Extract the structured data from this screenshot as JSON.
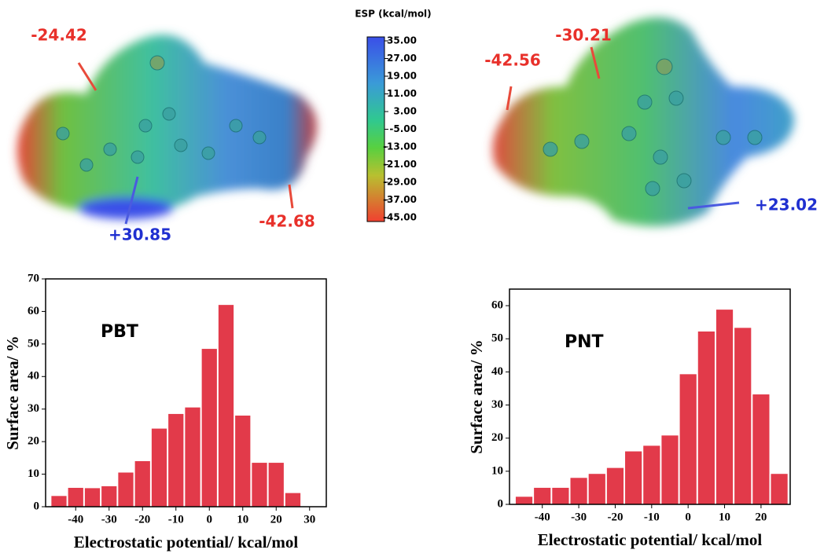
{
  "chart_data": [
    {
      "type": "histogram",
      "annotation": "PBT",
      "xlabel": "Electrostatic potential/ kcal/mol",
      "ylabel": "Surface area/ %",
      "bins": [
        -47.5,
        -42.5,
        -37.5,
        -32.5,
        -27.5,
        -22.5,
        -17.5,
        -12.5,
        -7.5,
        -2.5,
        2.5,
        7.5,
        12.5,
        17.5,
        22.5,
        27.5
      ],
      "values": [
        3.3,
        5.8,
        5.7,
        6.3,
        10.5,
        14,
        24,
        28.5,
        30.5,
        48.5,
        62,
        28,
        13.5,
        13.5,
        4.2
      ],
      "color": "#e23a4a",
      "xlim": [
        -49,
        35
      ],
      "xticks": [
        -40,
        -30,
        -20,
        -10,
        0,
        10,
        20,
        30
      ],
      "ylim": [
        0,
        70
      ],
      "yticks": [
        0,
        10,
        20,
        30,
        40,
        50,
        60,
        70
      ]
    },
    {
      "type": "histogram",
      "annotation": "PNT",
      "xlabel": "Electrostatic potential/ kcal/mol",
      "ylabel": "Surface area/ %",
      "bins": [
        -47.5,
        -42.5,
        -37.5,
        -32.5,
        -27.5,
        -22.5,
        -17.5,
        -12.5,
        -7.5,
        -2.5,
        2.5,
        7.5,
        12.5,
        17.5,
        22.5,
        27.5
      ],
      "values": [
        2.3,
        5,
        5,
        8,
        9.2,
        11,
        16,
        17.7,
        20.8,
        39.3,
        52.2,
        58.8,
        53.3,
        33.2,
        9.2
      ],
      "color": "#e23a4a",
      "xlim": [
        -49,
        28
      ],
      "xticks": [
        -40,
        -30,
        -20,
        -10,
        0,
        10,
        20
      ],
      "ylim": [
        0,
        65
      ],
      "yticks": [
        0,
        10,
        20,
        30,
        40,
        50,
        60
      ]
    }
  ],
  "esp_maps": {
    "colorbar": {
      "title": "ESP (kcal/mol)",
      "ticks": [
        {
          "value": 35,
          "label": "35.00"
        },
        {
          "value": 27,
          "label": "27.00"
        },
        {
          "value": 19,
          "label": "19.00"
        },
        {
          "value": 11,
          "label": "11.00"
        },
        {
          "value": 3,
          "label": "3.00"
        },
        {
          "value": -5,
          "label": "-5.00"
        },
        {
          "value": -13,
          "label": "-13.00"
        },
        {
          "value": -21,
          "label": "-21.00"
        },
        {
          "value": -29,
          "label": "-29.00"
        },
        {
          "value": -37,
          "label": "-37.00"
        },
        {
          "value": -45,
          "label": "-45.00"
        }
      ]
    },
    "labels": [
      {
        "text": "-24.42",
        "color": "#e8302a"
      },
      {
        "text": "+30.85",
        "color": "#2030d0"
      },
      {
        "text": "-42.68",
        "color": "#e8302a"
      },
      {
        "text": "-30.21",
        "color": "#e8302a"
      },
      {
        "text": "-42.56",
        "color": "#e8302a"
      },
      {
        "text": "+23.02",
        "color": "#2030d0"
      }
    ]
  }
}
